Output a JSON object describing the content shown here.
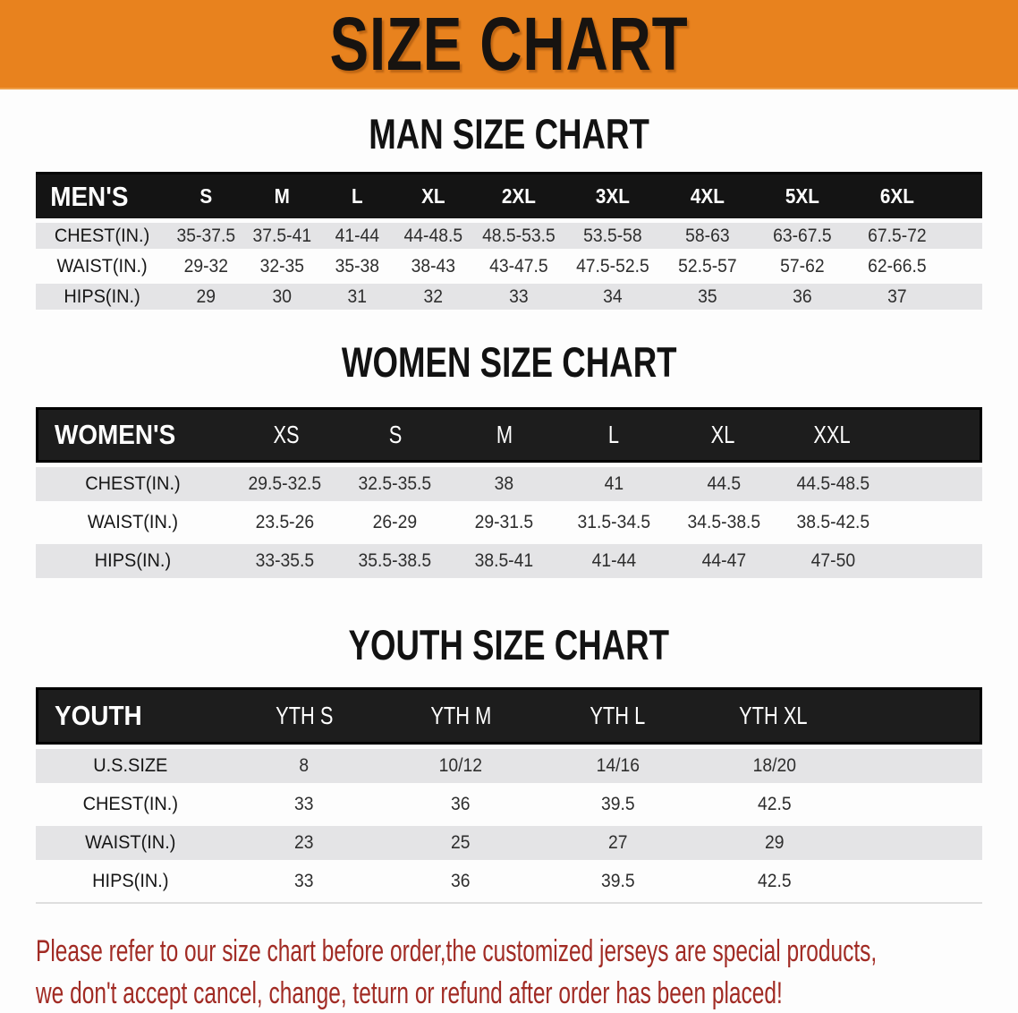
{
  "banner": {
    "title": "SIZE CHART"
  },
  "colors": {
    "banner_orange": "#e8821e",
    "header_black": "#1d1d1d",
    "stripe_gray": "#e4e4e6",
    "disclaimer_red": "#a12b24"
  },
  "man": {
    "section_title": "MAN SIZE CHART",
    "corner": "MEN'S",
    "sizes": [
      "S",
      "M",
      "L",
      "XL",
      "2XL",
      "3XL",
      "4XL",
      "5XL",
      "6XL"
    ],
    "rows": [
      {
        "label": "CHEST(IN.)",
        "values": [
          "35-37.5",
          "37.5-41",
          "41-44",
          "44-48.5",
          "48.5-53.5",
          "53.5-58",
          "58-63",
          "63-67.5",
          "67.5-72"
        ]
      },
      {
        "label": "WAIST(IN.)",
        "values": [
          "29-32",
          "32-35",
          "35-38",
          "38-43",
          "43-47.5",
          "47.5-52.5",
          "52.5-57",
          "57-62",
          "62-66.5"
        ]
      },
      {
        "label": "HIPS(IN.)",
        "values": [
          "29",
          "30",
          "31",
          "32",
          "33",
          "34",
          "35",
          "36",
          "37"
        ]
      }
    ]
  },
  "women": {
    "section_title": "WOMEN SIZE CHART",
    "corner": "WOMEN'S",
    "sizes": [
      "XS",
      "S",
      "M",
      "L",
      "XL",
      "XXL"
    ],
    "rows": [
      {
        "label": "CHEST(IN.)",
        "values": [
          "29.5-32.5",
          "32.5-35.5",
          "38",
          "41",
          "44.5",
          "44.5-48.5"
        ]
      },
      {
        "label": "WAIST(IN.)",
        "values": [
          "23.5-26",
          "26-29",
          "29-31.5",
          "31.5-34.5",
          "34.5-38.5",
          "38.5-42.5"
        ]
      },
      {
        "label": "HIPS(IN.)",
        "values": [
          "33-35.5",
          "35.5-38.5",
          "38.5-41",
          "41-44",
          "44-47",
          "47-50"
        ]
      }
    ]
  },
  "youth": {
    "section_title": "YOUTH SIZE CHART",
    "corner": "YOUTH",
    "sizes": [
      "YTH S",
      "YTH M",
      "YTH L",
      "YTH XL"
    ],
    "rows": [
      {
        "label": "U.S.SIZE",
        "values": [
          "8",
          "10/12",
          "14/16",
          "18/20"
        ]
      },
      {
        "label": "CHEST(IN.)",
        "values": [
          "33",
          "36",
          "39.5",
          "42.5"
        ]
      },
      {
        "label": "WAIST(IN.)",
        "values": [
          "23",
          "25",
          "27",
          "29"
        ]
      },
      {
        "label": "HIPS(IN.)",
        "values": [
          "33",
          "36",
          "39.5",
          "42.5"
        ]
      }
    ]
  },
  "disclaimer": {
    "line1": "Please refer to our size chart before order,the customized jerseys are special products,",
    "line2": "we don't accept cancel, change, teturn or refund after order has been placed!"
  }
}
